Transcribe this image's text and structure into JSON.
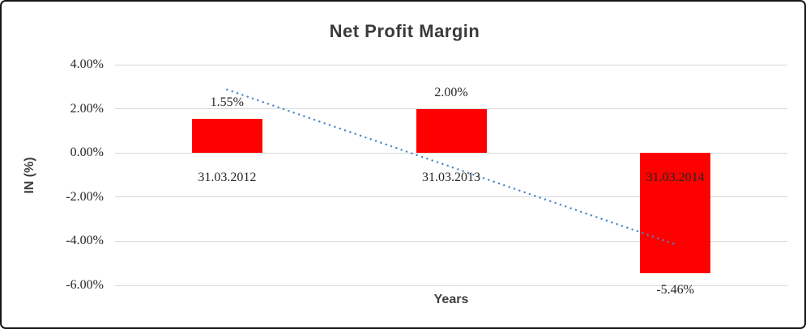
{
  "window": {
    "background": "#ffffff",
    "border_color": "#141414"
  },
  "chart_data": {
    "type": "bar",
    "title": "Net Profit Margin",
    "xlabel": "Years",
    "ylabel": "IN (%)",
    "categories": [
      "31.03.2012",
      "31.03.2013",
      "31.03.2014"
    ],
    "values": [
      1.55,
      2.0,
      -5.46
    ],
    "data_labels": [
      "1.55%",
      "2.00%",
      "-5.46%"
    ],
    "y_ticks": [
      {
        "value": 4,
        "label": "4.00%"
      },
      {
        "value": 2,
        "label": "2.00%"
      },
      {
        "value": 0,
        "label": "0.00%"
      },
      {
        "value": -2,
        "label": "-2.00%"
      },
      {
        "value": -4,
        "label": "-4.00%"
      },
      {
        "value": -6,
        "label": "-6.00%"
      }
    ],
    "ylim": [
      -6,
      4
    ],
    "grid": true,
    "legend": "none",
    "bar_color": "#fe0000",
    "gridline_color": "#d9d9d9",
    "title_color": "#3a3a3a",
    "axis_title_color": "#3f3f3f",
    "label_color": "#262626",
    "trendline": {
      "style": "dotted",
      "color": "#4a86c8",
      "start_value": 2.87,
      "end_value": -4.14
    }
  }
}
